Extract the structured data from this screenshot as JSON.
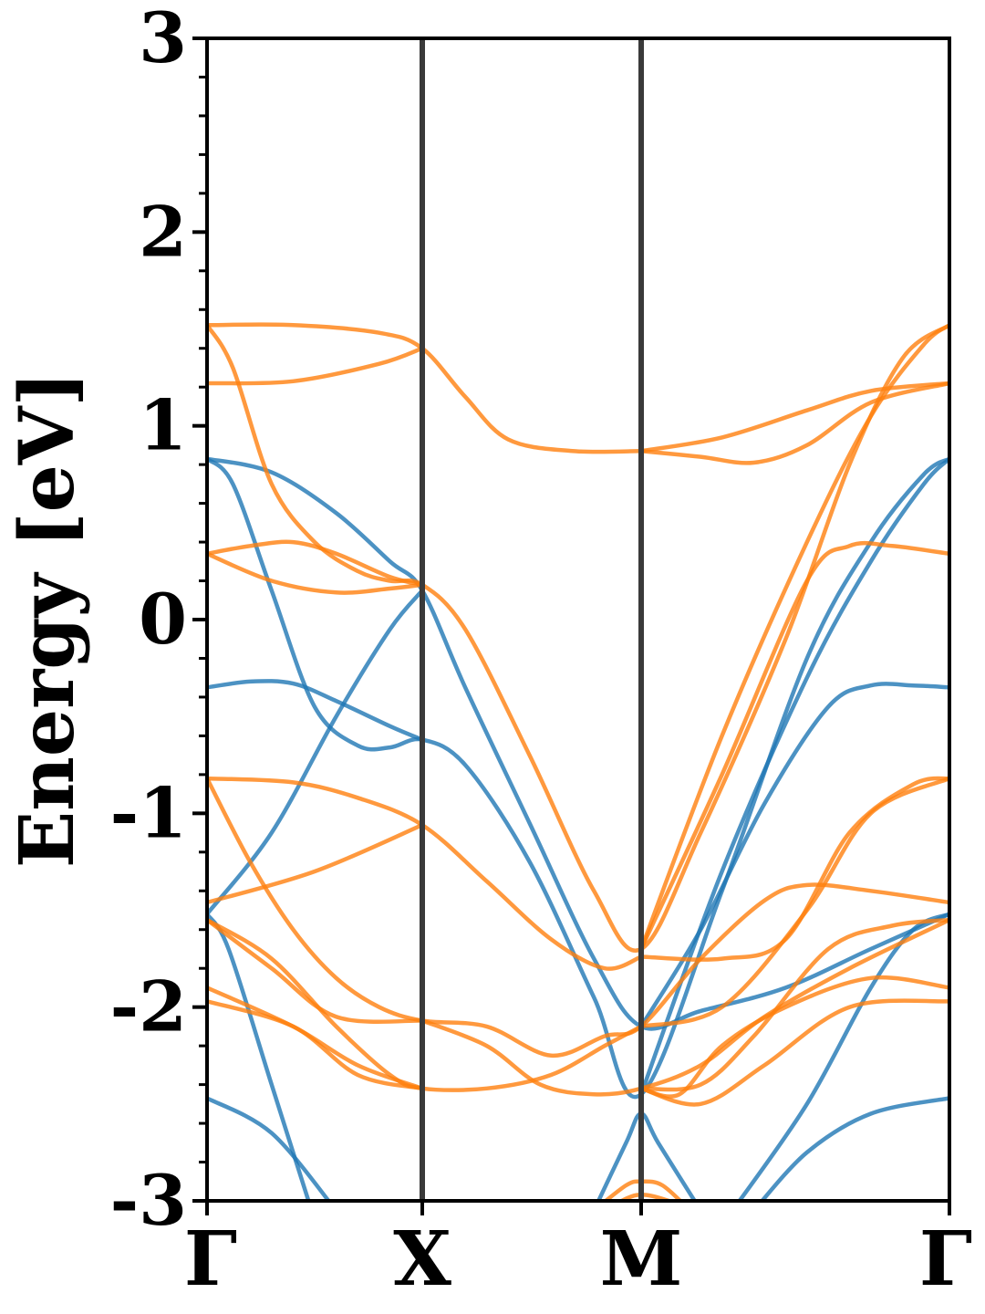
{
  "chart_data": {
    "type": "line",
    "title": "",
    "xlabel": "",
    "ylabel": "Energy [eV]",
    "ylim": [
      -3,
      3
    ],
    "xlim": [
      0,
      3.47
    ],
    "yticks": [
      "-3",
      "-2",
      "-1",
      "0",
      "1",
      "2",
      "3"
    ],
    "ytick_values": [
      -3,
      -2,
      -1,
      0,
      1,
      2,
      3
    ],
    "ytick_minor_step": 0.2,
    "kpoints": [
      {
        "label": "Γ",
        "x": 0
      },
      {
        "label": "X",
        "x": 1.0
      },
      {
        "label": "M",
        "x": 2.02
      },
      {
        "label": "Γ",
        "x": 3.47
      }
    ],
    "divider_color": "#3a3a3a",
    "grid": false,
    "legend": "none",
    "series": [
      {
        "color": "#1f77b4",
        "points": [
          [
            0,
            0.83
          ],
          [
            0.3,
            0.76
          ],
          [
            0.6,
            0.55
          ],
          [
            0.85,
            0.3
          ],
          [
            1.0,
            0.15
          ],
          [
            1.2,
            -0.35
          ],
          [
            1.5,
            -1.05
          ],
          [
            1.8,
            -1.75
          ],
          [
            2.02,
            -2.1
          ],
          [
            2.3,
            -2.02
          ],
          [
            2.7,
            -1.9
          ],
          [
            3.1,
            -1.7
          ],
          [
            3.47,
            -1.52
          ]
        ]
      },
      {
        "color": "#1f77b4",
        "points": [
          [
            0,
            0.83
          ],
          [
            0.12,
            0.7
          ],
          [
            0.3,
            0.15
          ],
          [
            0.5,
            -0.45
          ],
          [
            0.7,
            -0.65
          ],
          [
            0.85,
            -0.66
          ],
          [
            1.0,
            -0.62
          ],
          [
            1.2,
            -0.75
          ],
          [
            1.5,
            -1.25
          ],
          [
            1.8,
            -1.95
          ],
          [
            2.02,
            -2.45
          ],
          [
            2.4,
            -1.4
          ],
          [
            2.8,
            -0.2
          ],
          [
            3.1,
            0.4
          ],
          [
            3.35,
            0.75
          ],
          [
            3.47,
            0.83
          ]
        ]
      },
      {
        "color": "#1f77b4",
        "points": [
          [
            0,
            -0.35
          ],
          [
            0.2,
            -0.32
          ],
          [
            0.4,
            -0.33
          ],
          [
            0.6,
            -0.42
          ],
          [
            0.85,
            -0.55
          ],
          [
            1.0,
            -0.62
          ]
        ]
      },
      {
        "color": "#1f77b4",
        "points": [
          [
            2.02,
            -2.1
          ],
          [
            2.3,
            -1.6
          ],
          [
            2.6,
            -0.95
          ],
          [
            2.9,
            -0.45
          ],
          [
            3.1,
            -0.34
          ],
          [
            3.3,
            -0.34
          ],
          [
            3.47,
            -0.35
          ]
        ]
      },
      {
        "color": "#1f77b4",
        "points": [
          [
            0,
            -1.52
          ],
          [
            0.3,
            -1.1
          ],
          [
            0.6,
            -0.5
          ],
          [
            0.85,
            -0.05
          ],
          [
            1.0,
            0.15
          ]
        ]
      },
      {
        "color": "#1f77b4",
        "points": [
          [
            2.02,
            -2.45
          ],
          [
            2.4,
            -1.3
          ],
          [
            2.8,
            -0.3
          ],
          [
            3.1,
            0.3
          ],
          [
            3.35,
            0.7
          ],
          [
            3.47,
            0.83
          ]
        ]
      },
      {
        "color": "#1f77b4",
        "points": [
          [
            0,
            -1.52
          ],
          [
            0.1,
            -1.7
          ],
          [
            0.3,
            -2.4
          ],
          [
            0.5,
            -3.1
          ]
        ]
      },
      {
        "color": "#1f77b4",
        "points": [
          [
            0,
            -2.47
          ],
          [
            0.3,
            -2.65
          ],
          [
            0.6,
            -3.05
          ]
        ]
      },
      {
        "color": "#1f77b4",
        "points": [
          [
            1.8,
            -3.05
          ],
          [
            1.95,
            -2.7
          ],
          [
            2.02,
            -2.55
          ],
          [
            2.1,
            -2.7
          ],
          [
            2.3,
            -3.05
          ]
        ]
      },
      {
        "color": "#1f77b4",
        "points": [
          [
            2.55,
            -3.05
          ],
          [
            2.8,
            -2.75
          ],
          [
            3.1,
            -2.55
          ],
          [
            3.47,
            -2.47
          ]
        ]
      },
      {
        "color": "#1f77b4",
        "points": [
          [
            2.45,
            -3.05
          ],
          [
            2.8,
            -2.5
          ],
          [
            3.1,
            -1.9
          ],
          [
            3.3,
            -1.6
          ],
          [
            3.47,
            -1.52
          ]
        ]
      },
      {
        "color": "#ff7f0e",
        "points": [
          [
            0,
            1.52
          ],
          [
            0.4,
            1.52
          ],
          [
            0.8,
            1.48
          ],
          [
            1.0,
            1.4
          ],
          [
            1.2,
            1.15
          ],
          [
            1.4,
            0.93
          ],
          [
            1.7,
            0.87
          ],
          [
            2.02,
            0.87
          ]
        ]
      },
      {
        "color": "#ff7f0e",
        "points": [
          [
            0,
            1.22
          ],
          [
            0.4,
            1.23
          ],
          [
            0.8,
            1.32
          ],
          [
            1.0,
            1.4
          ]
        ]
      },
      {
        "color": "#ff7f0e",
        "points": [
          [
            2.02,
            0.87
          ],
          [
            2.3,
            0.84
          ],
          [
            2.55,
            0.81
          ],
          [
            2.8,
            0.9
          ],
          [
            3.1,
            1.12
          ],
          [
            3.47,
            1.22
          ]
        ]
      },
      {
        "color": "#ff7f0e",
        "points": [
          [
            2.02,
            0.87
          ],
          [
            2.4,
            0.94
          ],
          [
            2.8,
            1.08
          ],
          [
            3.1,
            1.18
          ],
          [
            3.47,
            1.22
          ]
        ]
      },
      {
        "color": "#ff7f0e",
        "points": [
          [
            0,
            1.52
          ],
          [
            0.12,
            1.3
          ],
          [
            0.3,
            0.7
          ],
          [
            0.5,
            0.4
          ],
          [
            0.7,
            0.25
          ],
          [
            0.85,
            0.2
          ],
          [
            1.0,
            0.18
          ],
          [
            1.2,
            -0.05
          ],
          [
            1.5,
            -0.7
          ],
          [
            1.8,
            -1.4
          ],
          [
            2.02,
            -1.7
          ],
          [
            2.3,
            -1.1
          ],
          [
            2.7,
            -0.1
          ],
          [
            3.0,
            0.8
          ],
          [
            3.25,
            1.35
          ],
          [
            3.47,
            1.52
          ]
        ]
      },
      {
        "color": "#ff7f0e",
        "points": [
          [
            0,
            0.34
          ],
          [
            0.2,
            0.38
          ],
          [
            0.4,
            0.4
          ],
          [
            0.6,
            0.34
          ],
          [
            0.85,
            0.22
          ],
          [
            1.0,
            0.18
          ]
        ]
      },
      {
        "color": "#ff7f0e",
        "points": [
          [
            0,
            0.34
          ],
          [
            0.3,
            0.2
          ],
          [
            0.6,
            0.14
          ],
          [
            0.85,
            0.16
          ],
          [
            1.0,
            0.18
          ]
        ]
      },
      {
        "color": "#ff7f0e",
        "points": [
          [
            2.02,
            -1.7
          ],
          [
            2.4,
            -0.8
          ],
          [
            2.8,
            0.2
          ],
          [
            3.0,
            0.38
          ],
          [
            3.2,
            0.38
          ],
          [
            3.47,
            0.34
          ]
        ]
      },
      {
        "color": "#ff7f0e",
        "points": [
          [
            2.02,
            -1.7
          ],
          [
            2.4,
            -0.6
          ],
          [
            2.8,
            0.4
          ],
          [
            3.1,
            1.05
          ],
          [
            3.35,
            1.42
          ],
          [
            3.47,
            1.52
          ]
        ]
      },
      {
        "color": "#ff7f0e",
        "points": [
          [
            0,
            -0.82
          ],
          [
            0.4,
            -0.84
          ],
          [
            0.7,
            -0.92
          ],
          [
            1.0,
            -1.06
          ],
          [
            1.3,
            -1.35
          ],
          [
            1.6,
            -1.65
          ],
          [
            1.85,
            -1.8
          ],
          [
            2.02,
            -1.74
          ]
        ]
      },
      {
        "color": "#ff7f0e",
        "points": [
          [
            0,
            -1.46
          ],
          [
            0.5,
            -1.3
          ],
          [
            1.0,
            -1.06
          ]
        ]
      },
      {
        "color": "#ff7f0e",
        "points": [
          [
            0,
            -0.82
          ],
          [
            0.2,
            -1.25
          ],
          [
            0.4,
            -1.6
          ],
          [
            0.6,
            -1.85
          ],
          [
            0.8,
            -2.0
          ],
          [
            1.0,
            -2.07
          ],
          [
            1.3,
            -2.1
          ],
          [
            1.6,
            -2.25
          ],
          [
            1.85,
            -2.15
          ],
          [
            2.02,
            -2.1
          ],
          [
            2.3,
            -1.75
          ],
          [
            2.6,
            -1.45
          ],
          [
            2.8,
            -1.37
          ],
          [
            3.1,
            -1.4
          ],
          [
            3.47,
            -1.46
          ]
        ]
      },
      {
        "color": "#ff7f0e",
        "points": [
          [
            2.02,
            -1.74
          ],
          [
            2.4,
            -1.75
          ],
          [
            2.7,
            -1.65
          ],
          [
            3.0,
            -1.1
          ],
          [
            3.3,
            -0.85
          ],
          [
            3.47,
            -0.82
          ]
        ]
      },
      {
        "color": "#ff7f0e",
        "points": [
          [
            2.02,
            -2.1
          ],
          [
            2.4,
            -2.0
          ],
          [
            2.8,
            -1.5
          ],
          [
            3.1,
            -1.0
          ],
          [
            3.47,
            -0.82
          ]
        ]
      },
      {
        "color": "#ff7f0e",
        "points": [
          [
            0,
            -1.55
          ],
          [
            0.3,
            -1.75
          ],
          [
            0.6,
            -2.1
          ],
          [
            0.85,
            -2.35
          ],
          [
            1.0,
            -2.42
          ],
          [
            1.3,
            -2.42
          ],
          [
            1.6,
            -2.35
          ],
          [
            1.85,
            -2.2
          ],
          [
            2.02,
            -2.1
          ]
        ]
      },
      {
        "color": "#ff7f0e",
        "points": [
          [
            0,
            -1.55
          ],
          [
            0.3,
            -1.8
          ],
          [
            0.6,
            -2.05
          ],
          [
            1.0,
            -2.07
          ]
        ]
      },
      {
        "color": "#ff7f0e",
        "points": [
          [
            0,
            -1.9
          ],
          [
            0.4,
            -2.1
          ],
          [
            0.7,
            -2.3
          ],
          [
            1.0,
            -2.42
          ]
        ]
      },
      {
        "color": "#ff7f0e",
        "points": [
          [
            0,
            -1.97
          ],
          [
            0.4,
            -2.1
          ],
          [
            0.7,
            -2.35
          ],
          [
            1.0,
            -2.42
          ]
        ]
      },
      {
        "color": "#ff7f0e",
        "points": [
          [
            1.0,
            -2.07
          ],
          [
            1.3,
            -2.2
          ],
          [
            1.55,
            -2.4
          ],
          [
            1.8,
            -2.45
          ],
          [
            2.02,
            -2.42
          ],
          [
            2.3,
            -2.3
          ],
          [
            2.6,
            -2.05
          ],
          [
            3.0,
            -1.8
          ],
          [
            3.47,
            -1.55
          ]
        ]
      },
      {
        "color": "#ff7f0e",
        "points": [
          [
            2.02,
            -2.42
          ],
          [
            2.2,
            -2.45
          ],
          [
            2.4,
            -2.2
          ],
          [
            2.7,
            -2.0
          ],
          [
            3.1,
            -1.85
          ],
          [
            3.47,
            -1.9
          ]
        ]
      },
      {
        "color": "#ff7f0e",
        "points": [
          [
            2.02,
            -2.42
          ],
          [
            2.3,
            -2.5
          ],
          [
            2.6,
            -2.3
          ],
          [
            3.0,
            -2.0
          ],
          [
            3.47,
            -1.97
          ]
        ]
      },
      {
        "color": "#ff7f0e",
        "points": [
          [
            2.02,
            -2.42
          ],
          [
            2.3,
            -2.4
          ],
          [
            2.55,
            -2.15
          ],
          [
            2.9,
            -1.7
          ],
          [
            3.2,
            -1.58
          ],
          [
            3.47,
            -1.55
          ]
        ]
      },
      {
        "color": "#ff7f0e",
        "points": [
          [
            1.8,
            -3.05
          ],
          [
            1.95,
            -2.92
          ],
          [
            2.02,
            -2.9
          ],
          [
            2.12,
            -2.92
          ],
          [
            2.25,
            -3.05
          ]
        ]
      },
      {
        "color": "#ff7f0e",
        "points": [
          [
            1.85,
            -3.05
          ],
          [
            2.0,
            -2.97
          ],
          [
            2.15,
            -3.0
          ],
          [
            2.22,
            -3.05
          ]
        ]
      }
    ]
  }
}
